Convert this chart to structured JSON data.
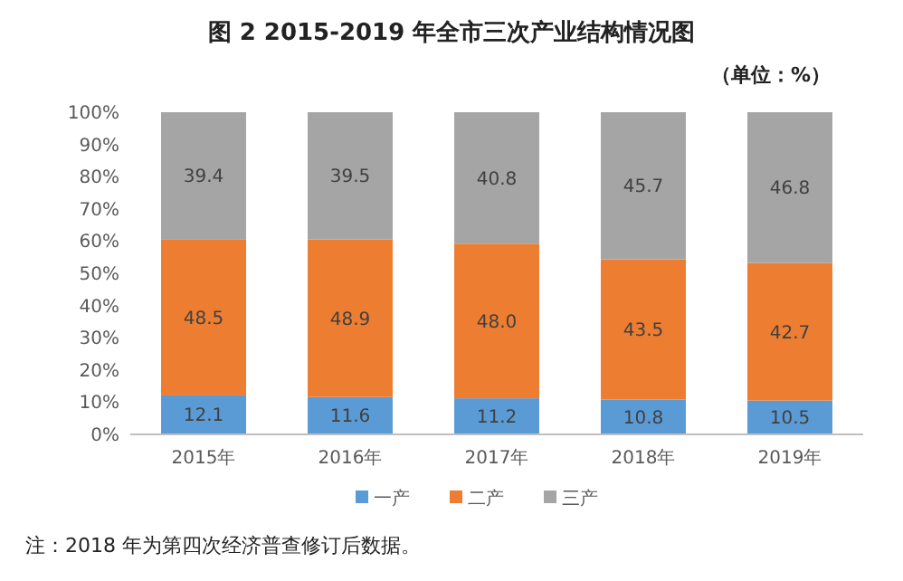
{
  "chart_data": {
    "type": "bar",
    "stacked": true,
    "title": "图 2 2015-2019 年全市三次产业结构情况图",
    "subtitle": "（单位：%）",
    "categories": [
      "2015年",
      "2016年",
      "2017年",
      "2018年",
      "2019年"
    ],
    "series": [
      {
        "name": "一产",
        "color": "#5b9bd5",
        "values": [
          12.1,
          11.6,
          11.2,
          10.8,
          10.5
        ],
        "value_labels": [
          "12.1",
          "11.6",
          "11.2",
          "10.8",
          "10.5"
        ]
      },
      {
        "name": "二产",
        "color": "#ed7d31",
        "values": [
          48.5,
          48.9,
          48.0,
          43.5,
          42.7
        ],
        "value_labels": [
          "48.5",
          "48.9",
          "48.0",
          "43.5",
          "42.7"
        ]
      },
      {
        "name": "三产",
        "color": "#a5a5a5",
        "values": [
          39.4,
          39.5,
          40.8,
          45.7,
          46.8
        ],
        "value_labels": [
          "39.4",
          "39.5",
          "40.8",
          "45.7",
          "46.8"
        ]
      }
    ],
    "ylim": [
      0,
      100
    ],
    "yticks": [
      {
        "value": 0,
        "label": "0%"
      },
      {
        "value": 10,
        "label": "10%"
      },
      {
        "value": 20,
        "label": "20%"
      },
      {
        "value": 30,
        "label": "30%"
      },
      {
        "value": 40,
        "label": "40%"
      },
      {
        "value": 50,
        "label": "50%"
      },
      {
        "value": 60,
        "label": "60%"
      },
      {
        "value": 70,
        "label": "70%"
      },
      {
        "value": 80,
        "label": "80%"
      },
      {
        "value": 90,
        "label": "90%"
      },
      {
        "value": 100,
        "label": "100%"
      }
    ],
    "legend": "bottom",
    "annotations": [
      "注：2018 年为第四次经济普查修订后数据。"
    ]
  }
}
